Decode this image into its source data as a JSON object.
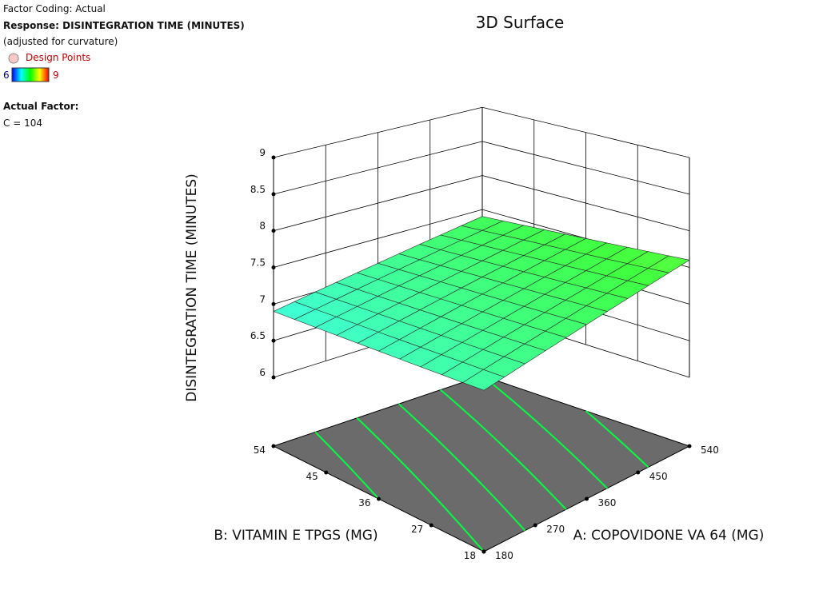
{
  "chart_data": {
    "type": "surface",
    "title": "3D Surface",
    "info": {
      "factor_coding": "Factor Coding: Actual",
      "response": "Response: DISINTEGRATION TIME (MINUTES)",
      "note": "(adjusted for curvature)",
      "actual_factor_heading": "Actual Factor:",
      "actual_factor": "C = 104"
    },
    "legend": {
      "points": "Design Points",
      "points_color": "#ffc8c8",
      "colorbar_min": 6,
      "colorbar_max": 9
    },
    "colormap": [
      "#0000ff",
      "#00ffff",
      "#00ff00",
      "#ffff00",
      "#ff0000"
    ],
    "xlabel": "A: COPOVIDONE VA 64 (MG)",
    "ylabel": "B: VITAMIN E TPGS (MG)",
    "zlabel": "DISINTEGRATION TIME (MINUTES)",
    "x": [
      180,
      216,
      252,
      288,
      324,
      360,
      396,
      432,
      468,
      504,
      540
    ],
    "y": [
      18,
      21.6,
      25.2,
      28.8,
      32.4,
      36,
      39.6,
      43.2,
      46.8,
      50.4,
      54
    ],
    "z": [
      [
        7.1,
        7.15,
        7.2,
        7.25,
        7.3,
        7.35,
        7.4,
        7.45,
        7.5,
        7.55,
        7.6
      ],
      [
        7.08,
        7.13,
        7.18,
        7.23,
        7.28,
        7.33,
        7.38,
        7.43,
        7.48,
        7.53,
        7.58
      ],
      [
        7.06,
        7.11,
        7.16,
        7.21,
        7.26,
        7.31,
        7.36,
        7.41,
        7.46,
        7.51,
        7.56
      ],
      [
        7.04,
        7.09,
        7.14,
        7.19,
        7.24,
        7.29,
        7.34,
        7.39,
        7.44,
        7.49,
        7.54
      ],
      [
        7.02,
        7.07,
        7.12,
        7.17,
        7.22,
        7.27,
        7.32,
        7.37,
        7.42,
        7.47,
        7.52
      ],
      [
        7,
        7.05,
        7.1,
        7.15,
        7.2,
        7.25,
        7.3,
        7.35,
        7.4,
        7.45,
        7.5
      ],
      [
        6.98,
        7.03,
        7.08,
        7.13,
        7.18,
        7.23,
        7.28,
        7.33,
        7.38,
        7.43,
        7.48
      ],
      [
        6.96,
        7.01,
        7.06,
        7.11,
        7.16,
        7.21,
        7.26,
        7.31,
        7.36,
        7.41,
        7.46
      ],
      [
        6.94,
        6.99,
        7.04,
        7.09,
        7.14,
        7.19,
        7.24,
        7.29,
        7.34,
        7.39,
        7.44
      ],
      [
        6.92,
        6.97,
        7.02,
        7.07,
        7.12,
        7.17,
        7.22,
        7.27,
        7.32,
        7.37,
        7.42
      ],
      [
        6.9,
        6.95,
        7,
        7.05,
        7.1,
        7.15,
        7.2,
        7.25,
        7.3,
        7.35,
        7.4
      ]
    ],
    "xlim": [
      180,
      540
    ],
    "xticks": [
      180,
      270,
      360,
      450,
      540
    ],
    "ylim": [
      18,
      54
    ],
    "yticks": [
      18,
      27,
      36,
      45,
      54
    ],
    "zlim": [
      6,
      9
    ],
    "zticks": [
      6,
      6.5,
      7,
      7.5,
      8,
      8.5,
      9
    ],
    "contour_levels": [
      7,
      7.1,
      7.2,
      7.3,
      7.4,
      7.5
    ],
    "contour_color": "#00ff40",
    "floor_color": "#6b6b6b",
    "grid": true
  }
}
